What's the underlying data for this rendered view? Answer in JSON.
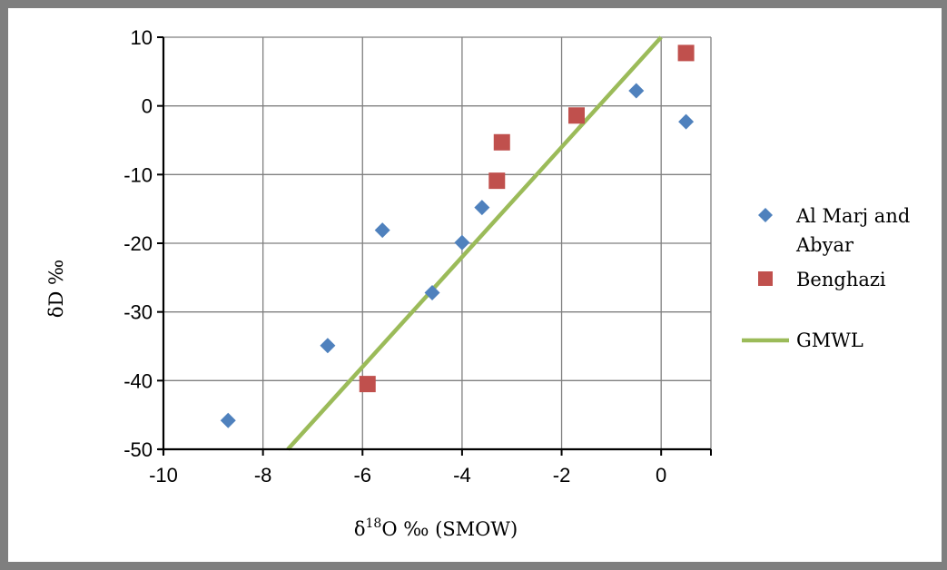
{
  "chart_data": {
    "type": "scatter",
    "xlabel": "δ18O ‰ (SMOW)",
    "xlabel_main": "δ",
    "xlabel_sup": "18",
    "xlabel_rest": "O ‰ (SMOW)",
    "ylabel": "δD ‰",
    "xlim": [
      -10,
      1
    ],
    "ylim": [
      -50,
      10
    ],
    "x_ticks": [
      -10,
      -8,
      -6,
      -4,
      -2,
      0
    ],
    "y_ticks": [
      10,
      0,
      -10,
      -20,
      -30,
      -40,
      -50
    ],
    "grid": true,
    "legend_position": "right",
    "series": [
      {
        "name": "Al Marj and Abyar",
        "name_lines": [
          "Al Marj and",
          "Abyar"
        ],
        "marker": "diamond",
        "color": "#4f81bd",
        "points": [
          {
            "x": -8.7,
            "y": -45.8
          },
          {
            "x": -6.7,
            "y": -34.9
          },
          {
            "x": -5.6,
            "y": -18.1
          },
          {
            "x": -4.6,
            "y": -27.2
          },
          {
            "x": -4.0,
            "y": -19.9
          },
          {
            "x": -3.6,
            "y": -14.8
          },
          {
            "x": -0.5,
            "y": 2.2
          },
          {
            "x": 0.5,
            "y": -2.3
          }
        ]
      },
      {
        "name": "Benghazi",
        "marker": "square",
        "color": "#c0504d",
        "points": [
          {
            "x": -5.9,
            "y": -40.5
          },
          {
            "x": -3.3,
            "y": -10.9
          },
          {
            "x": -3.2,
            "y": -5.3
          },
          {
            "x": -1.7,
            "y": -1.4
          },
          {
            "x": 0.5,
            "y": 7.7
          }
        ]
      },
      {
        "name": "GMWL",
        "marker": "line",
        "color": "#9bbb59",
        "line": [
          {
            "x": -7.5,
            "y": -50
          },
          {
            "x": 0,
            "y": 10
          }
        ]
      }
    ]
  }
}
